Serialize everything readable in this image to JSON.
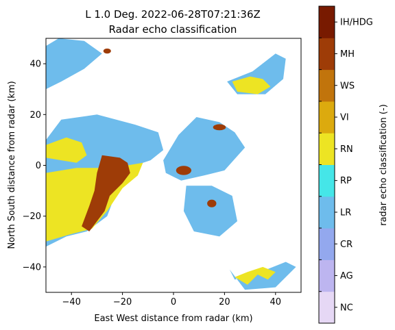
{
  "chart_data": {
    "type": "heatmap",
    "title": "L 1.0 Deg. 2022-06-28T07:21:36Z",
    "subtitle": "Radar echo classification",
    "xlabel": "East West distance from radar (km)",
    "ylabel": "North South distance from radar (km)",
    "xlim": [
      -50,
      50
    ],
    "ylim": [
      -50,
      50
    ],
    "xticks": [
      -40,
      -20,
      0,
      20,
      40
    ],
    "yticks": [
      -40,
      -20,
      0,
      20,
      40
    ],
    "grid": false,
    "colorbar": {
      "label": "radar echo classification (-)",
      "classes": [
        {
          "code": "NC",
          "color": "#e6d8f5"
        },
        {
          "code": "AG",
          "color": "#bdb5f0"
        },
        {
          "code": "CR",
          "color": "#93a8ee"
        },
        {
          "code": "LR",
          "color": "#6ebcec"
        },
        {
          "code": "RP",
          "color": "#45e6e8"
        },
        {
          "code": "RN",
          "color": "#ede423"
        },
        {
          "code": "VI",
          "color": "#dcaa0e"
        },
        {
          "code": "WS",
          "color": "#c1740c"
        },
        {
          "code": "MH",
          "color": "#9e3c07"
        },
        {
          "code": "IH/HDG",
          "color": "#781a00"
        }
      ]
    },
    "regions": [
      {
        "class": "LR",
        "shape": "polygon",
        "points": [
          [
            -50,
            10
          ],
          [
            -44,
            18
          ],
          [
            -30,
            20
          ],
          [
            -15,
            16
          ],
          [
            -6,
            13
          ],
          [
            -4,
            6
          ],
          [
            -9,
            2
          ],
          [
            -15,
            0
          ],
          [
            -20,
            -4
          ],
          [
            -26,
            -20
          ],
          [
            -34,
            -26
          ],
          [
            -42,
            -28
          ],
          [
            -50,
            -32
          ]
        ]
      },
      {
        "class": "LR",
        "shape": "polygon",
        "points": [
          [
            -4,
            2
          ],
          [
            2,
            12
          ],
          [
            9,
            19
          ],
          [
            18,
            17
          ],
          [
            24,
            13
          ],
          [
            28,
            7
          ],
          [
            20,
            -2
          ],
          [
            12,
            -4
          ],
          [
            3,
            -6
          ],
          [
            -3,
            -3
          ]
        ]
      },
      {
        "class": "LR",
        "shape": "polygon",
        "points": [
          [
            5,
            -8
          ],
          [
            15,
            -8
          ],
          [
            23,
            -12
          ],
          [
            25,
            -22
          ],
          [
            18,
            -28
          ],
          [
            8,
            -26
          ],
          [
            4,
            -18
          ]
        ]
      },
      {
        "class": "LR",
        "shape": "polygon",
        "points": [
          [
            -50,
            47
          ],
          [
            -45,
            50
          ],
          [
            -35,
            49
          ],
          [
            -28,
            44
          ],
          [
            -35,
            38
          ],
          [
            -44,
            33
          ],
          [
            -50,
            30
          ]
        ]
      },
      {
        "class": "LR",
        "shape": "polygon",
        "points": [
          [
            21,
            33
          ],
          [
            31,
            37
          ],
          [
            40,
            44
          ],
          [
            44,
            42
          ],
          [
            43,
            34
          ],
          [
            36,
            28
          ],
          [
            25,
            28
          ]
        ]
      },
      {
        "class": "LR",
        "shape": "polygon",
        "points": [
          [
            22,
            -41
          ],
          [
            28,
            -49
          ],
          [
            40,
            -48
          ],
          [
            48,
            -40
          ],
          [
            44,
            -38
          ],
          [
            34,
            -42
          ],
          [
            24,
            -45
          ]
        ]
      },
      {
        "class": "RN",
        "shape": "polygon",
        "points": [
          [
            -50,
            8
          ],
          [
            -42,
            11
          ],
          [
            -36,
            9
          ],
          [
            -34,
            4
          ],
          [
            -38,
            1
          ],
          [
            -44,
            2
          ],
          [
            -50,
            3
          ]
        ]
      },
      {
        "class": "RN",
        "shape": "polygon",
        "points": [
          [
            -50,
            -3
          ],
          [
            -38,
            -1
          ],
          [
            -28,
            -1
          ],
          [
            -18,
            0
          ],
          [
            -12,
            1
          ],
          [
            -14,
            -4
          ],
          [
            -20,
            -9
          ],
          [
            -26,
            -18
          ],
          [
            -32,
            -25
          ],
          [
            -40,
            -27
          ],
          [
            -50,
            -30
          ]
        ]
      },
      {
        "class": "RN",
        "shape": "polygon",
        "points": [
          [
            23,
            33
          ],
          [
            30,
            35
          ],
          [
            35,
            34
          ],
          [
            38,
            31
          ],
          [
            33,
            28
          ],
          [
            25,
            29
          ]
        ]
      },
      {
        "class": "RN",
        "shape": "polygon",
        "points": [
          [
            24,
            -44
          ],
          [
            29,
            -47
          ],
          [
            33,
            -43
          ],
          [
            37,
            -45
          ],
          [
            40,
            -42
          ],
          [
            35,
            -40
          ],
          [
            29,
            -42
          ]
        ]
      },
      {
        "class": "MH",
        "shape": "polygon",
        "points": [
          [
            -28,
            4
          ],
          [
            -21,
            3
          ],
          [
            -18,
            1
          ],
          [
            -17,
            -3
          ],
          [
            -20,
            -7
          ],
          [
            -25,
            -12
          ],
          [
            -27,
            -18
          ],
          [
            -30,
            -22
          ],
          [
            -33,
            -26
          ],
          [
            -36,
            -24
          ],
          [
            -33,
            -16
          ],
          [
            -31,
            -10
          ],
          [
            -30,
            -3
          ]
        ]
      },
      {
        "class": "MH",
        "shape": "ellipse",
        "cx": 4,
        "cy": -2,
        "rx": 3,
        "ry": 1.8
      },
      {
        "class": "MH",
        "shape": "ellipse",
        "cx": 15,
        "cy": -15,
        "rx": 1.8,
        "ry": 1.5
      },
      {
        "class": "MH",
        "shape": "ellipse",
        "cx": 18,
        "cy": 15,
        "rx": 2.5,
        "ry": 1.2
      },
      {
        "class": "MH",
        "shape": "ellipse",
        "cx": -26,
        "cy": 45,
        "rx": 1.5,
        "ry": 1
      }
    ]
  }
}
